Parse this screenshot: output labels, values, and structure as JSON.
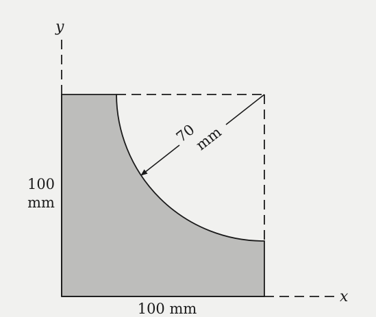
{
  "figure": {
    "axis_y_label": "y",
    "axis_x_label": "x",
    "radius_value": "70",
    "radius_unit": "mm",
    "height_value": "100",
    "height_unit": "mm",
    "width_label": "100 mm"
  },
  "colors": {
    "background": "#f1f1ef",
    "shaded_area": "#bdbdbb",
    "line": "#1a1a1a"
  }
}
